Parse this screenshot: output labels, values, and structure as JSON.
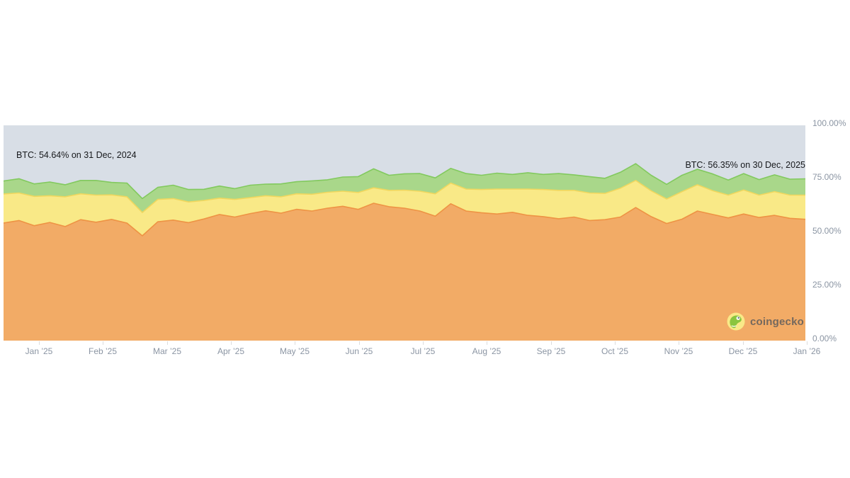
{
  "chart": {
    "annotations": {
      "left": {
        "text": "BTC: 54.64% on 31 Dec, 2024"
      },
      "right": {
        "text": "BTC: 56.35% on 30 Dec, 2025"
      }
    },
    "watermark": {
      "text": "coingecko",
      "icon": "coingecko-gecko-in-yellow-circle"
    },
    "colors": {
      "page_background": "#FFFFFF",
      "plot_background_others": "#D8DEE6",
      "btc_fill": "#F2AB66",
      "btc_stroke": "#EE9344",
      "yellow_fill": "#F9E987",
      "yellow_stroke": "#F0D75E",
      "green_fill": "#A9D78A",
      "green_stroke": "#82C95E",
      "axis_label": "#8B95A3",
      "annotation_text": "#17191C",
      "tick": "#DDDDDD",
      "watermark_text": "#58595B",
      "logo_circle": "#F9E988",
      "logo_gecko": "#8BC53F"
    }
  },
  "chart_data": {
    "type": "area",
    "stacked": true,
    "title": "",
    "legend": "none",
    "grid": false,
    "ylim": [
      0,
      100
    ],
    "y_ticks": [
      100,
      75,
      50,
      25,
      0
    ],
    "y_axis_labels": [
      "100.00%",
      "75.00%",
      "50.00%",
      "25.00%",
      "0.00%"
    ],
    "x_axis_labels": [
      "Jan ’25",
      "Feb ’25",
      "Mar ’25",
      "Apr ’25",
      "May ’25",
      "Jun ’25",
      "Jul ’25",
      "Aug ’25",
      "Sep ’25",
      "Oct ’25",
      "Nov ’25",
      "Dec ’25",
      "Jan ’26"
    ],
    "x_range": {
      "start": "31 Dec, 2024",
      "end": "30 Dec, 2025",
      "interval_days": 7,
      "points": 53
    },
    "annotations": [
      {
        "text": "BTC: 54.64% on 31 Dec, 2024",
        "position": "start"
      },
      {
        "text": "BTC: 56.35% on 30 Dec, 2025",
        "position": "end"
      }
    ],
    "series": [
      {
        "name": "BTC",
        "color": "#F2AB66",
        "stroke": "#EE9344",
        "values": [
          54.64,
          55.8,
          53.4,
          54.9,
          53.0,
          56.2,
          55.0,
          56.3,
          54.6,
          48.7,
          55.2,
          56.0,
          54.8,
          56.5,
          58.6,
          57.4,
          59.0,
          60.3,
          59.2,
          61.0,
          60.2,
          61.5,
          62.4,
          61.0,
          63.8,
          62.2,
          61.5,
          60.2,
          57.8,
          63.6,
          60.2,
          59.4,
          58.8,
          59.6,
          58.2,
          57.6,
          56.6,
          57.4,
          55.8,
          56.2,
          57.4,
          61.8,
          57.6,
          54.4,
          56.4,
          60.2,
          58.6,
          57.0,
          58.8,
          57.2,
          58.2,
          56.8,
          56.35
        ]
      },
      {
        "name": "unlabeled-yellow-band",
        "color": "#F9E987",
        "stroke": "#F0D75E",
        "values": [
          13.5,
          12.8,
          13.6,
          12.4,
          13.8,
          12.0,
          12.6,
          11.4,
          12.2,
          10.8,
          10.4,
          10.0,
          9.6,
          8.6,
          7.6,
          8.2,
          7.4,
          7.0,
          7.6,
          7.2,
          7.8,
          7.4,
          7.0,
          7.8,
          7.2,
          7.6,
          8.4,
          9.2,
          10.4,
          9.6,
          10.2,
          10.8,
          11.6,
          10.8,
          12.2,
          12.6,
          13.2,
          12.4,
          12.8,
          12.2,
          13.4,
          12.6,
          12.0,
          11.4,
          12.8,
          12.2,
          11.0,
          10.6,
          11.2,
          10.4,
          11.0,
          10.8,
          11.2
        ]
      },
      {
        "name": "unlabeled-green-band",
        "color": "#A9D78A",
        "stroke": "#82C95E",
        "values": [
          6.0,
          6.6,
          5.8,
          6.4,
          5.6,
          6.2,
          6.8,
          5.8,
          6.4,
          6.5,
          5.6,
          6.2,
          5.8,
          5.2,
          5.6,
          5.0,
          5.8,
          5.4,
          6.0,
          5.6,
          6.2,
          5.8,
          6.6,
          7.4,
          8.8,
          7.0,
          7.6,
          8.2,
          7.4,
          6.8,
          7.2,
          6.6,
          7.4,
          6.8,
          7.6,
          7.0,
          7.8,
          7.2,
          7.6,
          7.0,
          7.4,
          7.8,
          7.2,
          6.8,
          7.6,
          7.2,
          7.8,
          7.0,
          7.6,
          7.2,
          7.8,
          7.4,
          7.6
        ]
      },
      {
        "name": "others-remainder",
        "color": "#D8DEE6",
        "fills_to": 100
      }
    ]
  }
}
